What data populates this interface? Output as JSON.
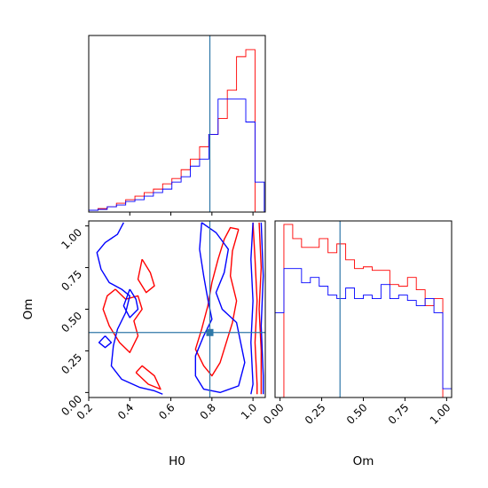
{
  "chart_data": [
    {
      "type": "step-histogram",
      "panel": "H0 marginal",
      "x_param": "H0",
      "xlim": [
        0.2,
        1.06
      ],
      "bin_edges": [
        0.2,
        0.245,
        0.29,
        0.335,
        0.38,
        0.425,
        0.47,
        0.515,
        0.56,
        0.605,
        0.65,
        0.695,
        0.74,
        0.785,
        0.83,
        0.875,
        0.92,
        0.965,
        1.01,
        1.055
      ],
      "truth": 0.79,
      "series": [
        {
          "color": "#ff0000",
          "values": [
            0.01,
            0.02,
            0.03,
            0.05,
            0.07,
            0.09,
            0.11,
            0.13,
            0.16,
            0.19,
            0.24,
            0.3,
            0.37,
            0.44,
            0.53,
            0.69,
            0.88,
            0.92,
            0.0
          ]
        },
        {
          "color": "#0000ff",
          "values": [
            0.01,
            0.015,
            0.03,
            0.04,
            0.06,
            0.07,
            0.09,
            0.11,
            0.13,
            0.17,
            0.2,
            0.26,
            0.3,
            0.44,
            0.64,
            0.64,
            0.64,
            0.51,
            0.17
          ]
        }
      ]
    },
    {
      "type": "step-histogram",
      "panel": "Om marginal",
      "x_param": "Om",
      "xlabel": "Om",
      "xlim": [
        -0.03,
        1.03
      ],
      "xticks": [
        "0.00",
        "0.25",
        "0.50",
        "0.75",
        "1.00"
      ],
      "bin_edges": [
        -0.03,
        0.023,
        0.076,
        0.129,
        0.182,
        0.235,
        0.288,
        0.341,
        0.394,
        0.447,
        0.5,
        0.553,
        0.606,
        0.659,
        0.712,
        0.765,
        0.818,
        0.871,
        0.924,
        0.977,
        1.03
      ],
      "truth": 0.36,
      "series": [
        {
          "color": "#ff0000",
          "values": [
            0.0,
            0.98,
            0.9,
            0.85,
            0.85,
            0.9,
            0.82,
            0.87,
            0.78,
            0.73,
            0.74,
            0.72,
            0.72,
            0.64,
            0.63,
            0.68,
            0.61,
            0.52,
            0.56,
            0.0
          ]
        },
        {
          "color": "#0000ff",
          "values": [
            0.48,
            0.73,
            0.73,
            0.65,
            0.68,
            0.63,
            0.58,
            0.56,
            0.62,
            0.56,
            0.58,
            0.56,
            0.64,
            0.56,
            0.58,
            0.55,
            0.52,
            0.56,
            0.48,
            0.05
          ]
        }
      ]
    },
    {
      "type": "contour",
      "panel": "H0 vs Om joint",
      "xlabel": "H0",
      "ylabel": "Om",
      "xlim": [
        0.2,
        1.06
      ],
      "ylim": [
        -0.03,
        1.03
      ],
      "xticks": [
        "0.2",
        "0.4",
        "0.6",
        "0.8",
        "1.0"
      ],
      "yticks": [
        "0.00",
        "0.25",
        "0.50",
        "0.75",
        "1.00"
      ],
      "truth": {
        "H0": 0.79,
        "Om": 0.36
      },
      "series": [
        {
          "color": "#ff0000",
          "contours": [
            [
              [
                1.0,
                1.02
              ],
              [
                1.01,
                0.8
              ],
              [
                1.02,
                0.55
              ],
              [
                1.01,
                0.3
              ],
              [
                1.02,
                0.05
              ],
              [
                1.02,
                -0.01
              ]
            ],
            [
              [
                1.03,
                1.02
              ],
              [
                1.04,
                0.75
              ],
              [
                1.03,
                0.5
              ],
              [
                1.04,
                0.25
              ],
              [
                1.04,
                -0.01
              ]
            ],
            [
              [
                0.93,
                0.98
              ],
              [
                0.9,
                0.85
              ],
              [
                0.89,
                0.7
              ],
              [
                0.92,
                0.55
              ],
              [
                0.9,
                0.42
              ],
              [
                0.87,
                0.3
              ],
              [
                0.84,
                0.18
              ],
              [
                0.8,
                0.1
              ],
              [
                0.76,
                0.16
              ],
              [
                0.72,
                0.26
              ],
              [
                0.75,
                0.38
              ],
              [
                0.78,
                0.52
              ],
              [
                0.8,
                0.66
              ],
              [
                0.83,
                0.8
              ],
              [
                0.86,
                0.92
              ],
              [
                0.89,
                0.99
              ],
              [
                0.93,
                0.98
              ]
            ],
            [
              [
                0.33,
                0.62
              ],
              [
                0.38,
                0.56
              ],
              [
                0.44,
                0.58
              ],
              [
                0.46,
                0.5
              ],
              [
                0.42,
                0.43
              ],
              [
                0.44,
                0.34
              ],
              [
                0.4,
                0.24
              ],
              [
                0.35,
                0.3
              ],
              [
                0.3,
                0.4
              ],
              [
                0.27,
                0.5
              ],
              [
                0.29,
                0.58
              ],
              [
                0.33,
                0.62
              ]
            ],
            [
              [
                0.43,
                0.12
              ],
              [
                0.49,
                0.05
              ],
              [
                0.55,
                0.02
              ],
              [
                0.52,
                0.1
              ],
              [
                0.46,
                0.16
              ],
              [
                0.43,
                0.12
              ]
            ],
            [
              [
                0.46,
                0.8
              ],
              [
                0.5,
                0.72
              ],
              [
                0.52,
                0.64
              ],
              [
                0.48,
                0.6
              ],
              [
                0.44,
                0.68
              ],
              [
                0.46,
                0.8
              ]
            ]
          ]
        },
        {
          "color": "#0000ff",
          "contours": [
            [
              [
                1.0,
                1.02
              ],
              [
                0.99,
                0.8
              ],
              [
                1.0,
                0.55
              ],
              [
                0.99,
                0.3
              ],
              [
                1.0,
                0.05
              ],
              [
                0.99,
                -0.01
              ]
            ],
            [
              [
                1.04,
                1.02
              ],
              [
                1.05,
                0.7
              ],
              [
                1.04,
                0.4
              ],
              [
                1.05,
                0.1
              ],
              [
                1.05,
                -0.01
              ]
            ],
            [
              [
                0.37,
                1.02
              ],
              [
                0.34,
                0.95
              ],
              [
                0.28,
                0.9
              ],
              [
                0.24,
                0.84
              ],
              [
                0.26,
                0.74
              ],
              [
                0.3,
                0.66
              ],
              [
                0.36,
                0.62
              ],
              [
                0.4,
                0.58
              ],
              [
                0.38,
                0.48
              ],
              [
                0.34,
                0.38
              ],
              [
                0.32,
                0.28
              ],
              [
                0.31,
                0.16
              ],
              [
                0.36,
                0.08
              ],
              [
                0.45,
                0.03
              ],
              [
                0.52,
                0.01
              ],
              [
                0.56,
                -0.01
              ]
            ],
            [
              [
                0.75,
                1.02
              ],
              [
                0.82,
                0.96
              ],
              [
                0.88,
                0.86
              ],
              [
                0.86,
                0.72
              ],
              [
                0.82,
                0.6
              ],
              [
                0.85,
                0.5
              ],
              [
                0.92,
                0.42
              ],
              [
                0.94,
                0.3
              ],
              [
                0.96,
                0.18
              ],
              [
                0.93,
                0.04
              ],
              [
                0.84,
                0.0
              ],
              [
                0.76,
                0.02
              ],
              [
                0.72,
                0.1
              ],
              [
                0.72,
                0.22
              ],
              [
                0.76,
                0.34
              ],
              [
                0.8,
                0.44
              ],
              [
                0.78,
                0.56
              ],
              [
                0.76,
                0.7
              ],
              [
                0.74,
                0.86
              ],
              [
                0.75,
                1.02
              ]
            ],
            [
              [
                0.4,
                0.62
              ],
              [
                0.43,
                0.56
              ],
              [
                0.44,
                0.5
              ],
              [
                0.4,
                0.45
              ],
              [
                0.37,
                0.52
              ],
              [
                0.4,
                0.62
              ]
            ],
            [
              [
                0.28,
                0.34
              ],
              [
                0.31,
                0.3
              ],
              [
                0.28,
                0.27
              ],
              [
                0.25,
                0.3
              ],
              [
                0.28,
                0.34
              ]
            ]
          ]
        }
      ]
    }
  ]
}
